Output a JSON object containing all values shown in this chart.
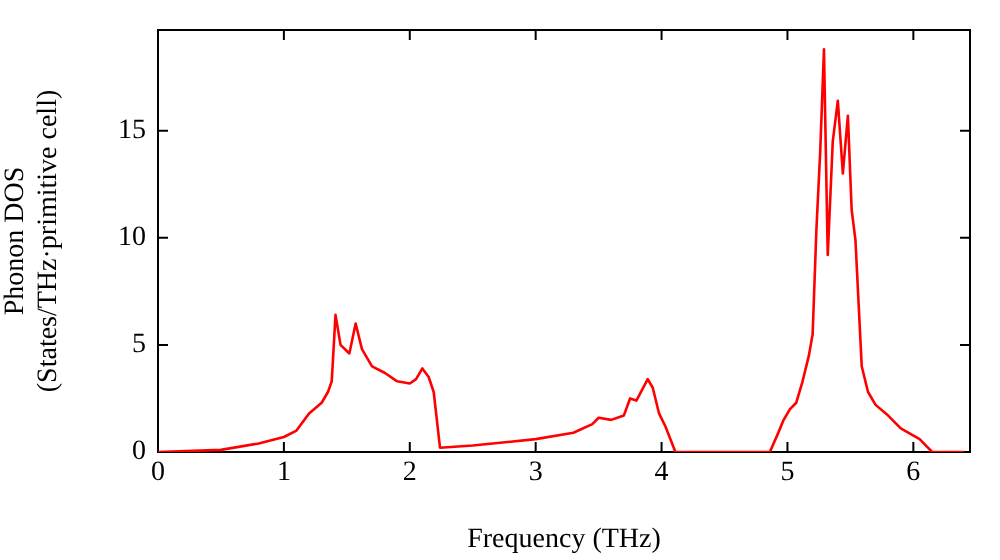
{
  "chart_data": {
    "type": "line",
    "xlabel": "Frequency (THz)",
    "ylabel": "Phonon DOS\n(States/THz·primitive cell)",
    "xlim": [
      0,
      6.45
    ],
    "ylim": [
      0,
      19.7
    ],
    "xticks": [
      0,
      1,
      2,
      3,
      4,
      5,
      6
    ],
    "yticks": [
      0,
      5,
      10,
      15
    ],
    "grid": false,
    "legend": false,
    "marker": "none",
    "line_style": "solid",
    "series": [
      {
        "color": "#ff0000",
        "x": [
          0,
          0.5,
          0.8,
          1.0,
          1.1,
          1.2,
          1.3,
          1.35,
          1.38,
          1.41,
          1.45,
          1.52,
          1.57,
          1.62,
          1.7,
          1.8,
          1.9,
          2.0,
          2.05,
          2.1,
          2.15,
          2.19,
          2.24,
          2.5,
          3.0,
          3.3,
          3.45,
          3.5,
          3.6,
          3.7,
          3.75,
          3.8,
          3.89,
          3.93,
          3.98,
          4.03,
          4.11,
          4.86,
          4.92,
          4.97,
          5.02,
          5.07,
          5.12,
          5.17,
          5.2,
          5.23,
          5.26,
          5.29,
          5.32,
          5.36,
          5.4,
          5.44,
          5.48,
          5.51,
          5.54,
          5.59,
          5.64,
          5.7,
          5.8,
          5.9,
          6.05,
          6.1,
          6.15,
          6.4
        ],
        "values": [
          0,
          0.1,
          0.4,
          0.7,
          1.0,
          1.8,
          2.3,
          2.8,
          3.3,
          6.4,
          5.0,
          4.6,
          6.0,
          4.8,
          4.0,
          3.7,
          3.3,
          3.2,
          3.4,
          3.9,
          3.5,
          2.8,
          0.2,
          0.3,
          0.6,
          0.9,
          1.3,
          1.6,
          1.5,
          1.7,
          2.5,
          2.4,
          3.4,
          3.0,
          1.8,
          1.2,
          0,
          0,
          0.8,
          1.5,
          2.0,
          2.3,
          3.3,
          4.5,
          5.5,
          10.4,
          14,
          18.8,
          9.2,
          14.5,
          16.4,
          13.0,
          15.7,
          11.3,
          9.9,
          4.0,
          2.8,
          2.2,
          1.7,
          1.1,
          0.6,
          0.3,
          0,
          0
        ]
      }
    ]
  }
}
